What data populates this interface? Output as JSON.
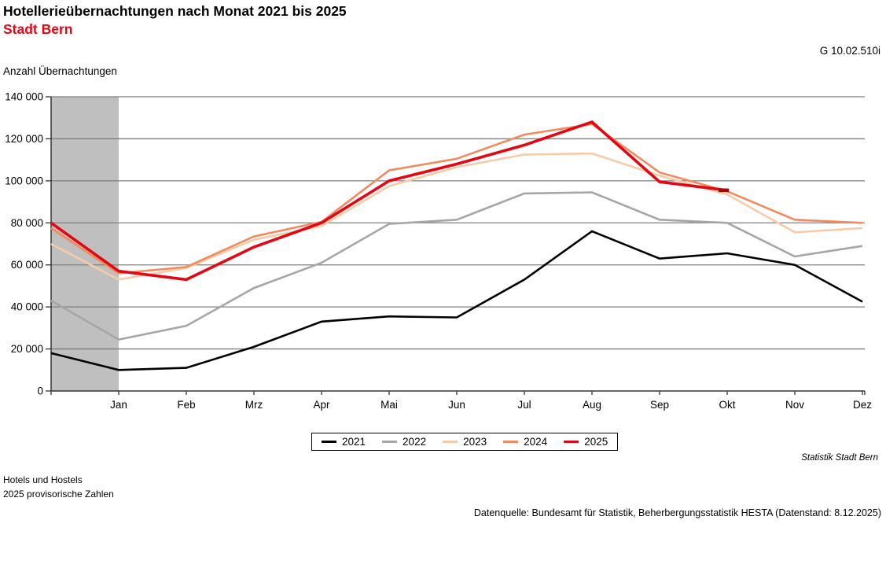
{
  "header": {
    "title": "Hotellerieübernachtungen nach Monat 2021 bis 2025",
    "subtitle": "Stadt Bern",
    "graph_id": "G 10.02.510i",
    "y_axis_title": "Anzahl Übernachtungen"
  },
  "footnotes": {
    "credit": "Statistik Stadt Bern",
    "note1": "Hotels und Hostels",
    "note2": "2025 provisorische Zahlen",
    "datasource": "Datenquelle: Bundesamt für Statistik, Beherbergungsstatistik HESTA (Datenstand: 8.12.2025)"
  },
  "colors": {
    "accent_red": "#e30613",
    "highlight_band": "#bfbfbf",
    "gridline": "#7f7f7f",
    "axis": "#333333"
  },
  "chart_data": {
    "type": "line",
    "title": "Hotellerieübernachtungen nach Monat 2021 bis 2025 – Stadt Bern",
    "ylabel": "Anzahl Übernachtungen",
    "ylim": [
      0,
      140000
    ],
    "ytick_step": 20000,
    "y_tick_values": [
      0,
      20000,
      40000,
      60000,
      80000,
      100000,
      120000,
      140000
    ],
    "y_tick_labels": [
      "0",
      "20 000",
      "40 000",
      "60 000",
      "80 000",
      "100 000",
      "120 000",
      "140 000"
    ],
    "x_categories": [
      "Jan",
      "Feb",
      "Mrz",
      "Apr",
      "Mai",
      "Jun",
      "Jul",
      "Aug",
      "Sep",
      "Okt",
      "Nov",
      "Dez"
    ],
    "x_points": [
      "Dez (Vorjahr)",
      "Jan",
      "Feb",
      "Mrz",
      "Apr",
      "Mai",
      "Jun",
      "Jul",
      "Aug",
      "Sep",
      "Okt",
      "Nov",
      "Dez"
    ],
    "highlight_band": {
      "from_point": "Dez (Vorjahr)",
      "to_point": "Jan"
    },
    "grid": "horizontal",
    "legend_position": "bottom-center",
    "series": [
      {
        "name": "2021",
        "color": "#000000",
        "width": 2.6,
        "values": [
          18000,
          10000,
          11000,
          21000,
          33000,
          35500,
          35000,
          53000,
          76000,
          63000,
          65500,
          60000,
          42500
        ]
      },
      {
        "name": "2022",
        "color": "#a6a6a6",
        "width": 2.6,
        "values": [
          43000,
          24500,
          31000,
          49000,
          61000,
          79500,
          81500,
          94000,
          94500,
          81500,
          80000,
          64000,
          69000
        ]
      },
      {
        "name": "2023",
        "color": "#f5cba8",
        "width": 2.6,
        "values": [
          70000,
          53000,
          58500,
          72000,
          78500,
          97500,
          106500,
          112500,
          113000,
          102500,
          93500,
          75500,
          77500
        ]
      },
      {
        "name": "2024",
        "color": "#f18a5f",
        "width": 2.6,
        "values": [
          77500,
          56000,
          59000,
          73500,
          80500,
          105000,
          110500,
          122000,
          127000,
          104000,
          95000,
          81500,
          80000
        ]
      },
      {
        "name": "2025",
        "color": "#e30613",
        "width": 3.6,
        "values": [
          80000,
          57000,
          53000,
          68500,
          80000,
          100000,
          108000,
          117000,
          128000,
          99500,
          95500
        ]
      }
    ]
  }
}
